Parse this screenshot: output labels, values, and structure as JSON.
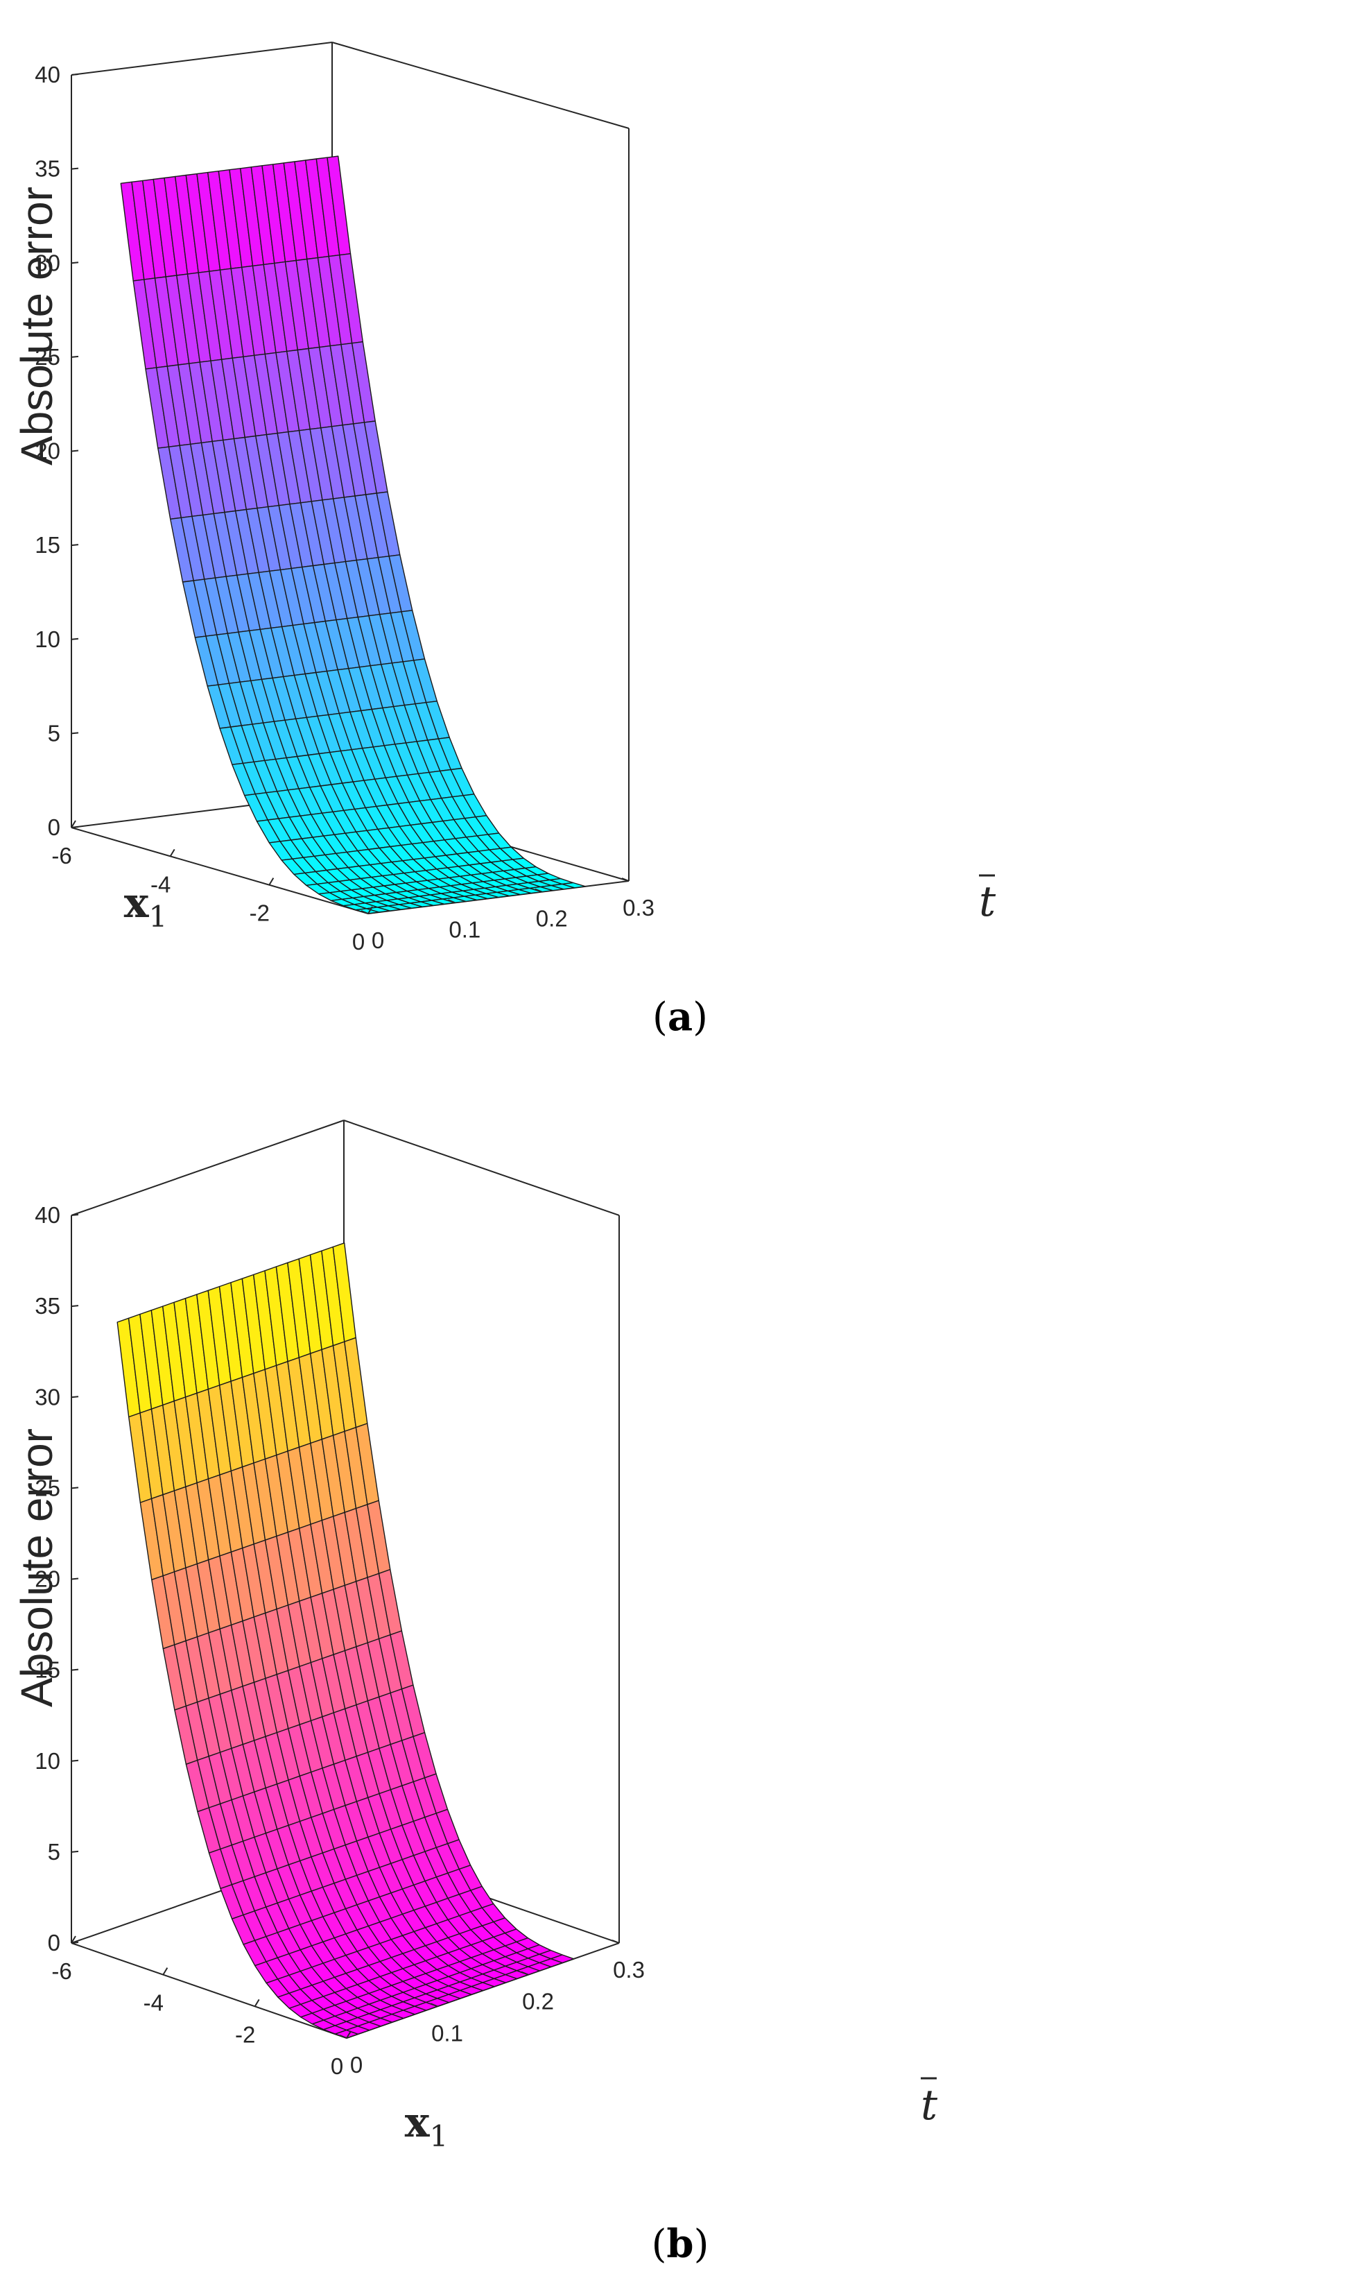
{
  "chart_data": [
    {
      "type": "surface",
      "panel_label": "a",
      "zlabel": "Absolute error",
      "xlabel": "x",
      "xlabel_sub": "1",
      "ylabel": "t",
      "x_ticks": [
        -6,
        -4,
        -2,
        0
      ],
      "x_tick_labels": [
        "-6",
        "-4",
        "-2",
        "0"
      ],
      "y_ticks": [
        0,
        0.1,
        0.2,
        0.3
      ],
      "y_tick_labels": [
        "0",
        "0.1",
        "0.2",
        "0.3"
      ],
      "z_ticks": [
        0,
        5,
        10,
        15,
        20,
        25,
        30,
        35,
        40
      ],
      "z_tick_labels": [
        "0",
        "5",
        "10",
        "15",
        "20",
        "25",
        "30",
        "35",
        "40"
      ],
      "xlim": [
        -6,
        0
      ],
      "ylim": [
        0,
        0.3
      ],
      "zlim": [
        0,
        40
      ],
      "surface_x_range": [
        -5,
        0
      ],
      "surface_y_range": [
        0,
        0.25
      ],
      "grid_size": [
        21,
        21
      ],
      "peak_value": 35,
      "colormap": "cool",
      "colormap_stops": [
        "#00ffff",
        "#ff00ff"
      ]
    },
    {
      "type": "surface",
      "panel_label": "b",
      "zlabel": "Absolute error",
      "xlabel": "x",
      "xlabel_sub": "1",
      "ylabel": "t",
      "x_ticks": [
        -6,
        -4,
        -2,
        0
      ],
      "x_tick_labels": [
        "-6",
        "-4",
        "-2",
        "0"
      ],
      "y_ticks": [
        0,
        0.1,
        0.2,
        0.3
      ],
      "y_tick_labels": [
        "0",
        "0.1",
        "0.2",
        "0.3"
      ],
      "z_ticks": [
        0,
        5,
        10,
        15,
        20,
        25,
        30,
        35,
        40
      ],
      "z_tick_labels": [
        "0",
        "5",
        "10",
        "15",
        "20",
        "25",
        "30",
        "35",
        "40"
      ],
      "xlim": [
        -6,
        0
      ],
      "ylim": [
        0,
        0.3
      ],
      "zlim": [
        0,
        40
      ],
      "surface_x_range": [
        -5,
        0
      ],
      "surface_y_range": [
        0,
        0.25
      ],
      "grid_size": [
        21,
        21
      ],
      "peak_value": 35,
      "colormap": "spring",
      "colormap_stops": [
        "#ff00ff",
        "#ffff00"
      ]
    }
  ]
}
